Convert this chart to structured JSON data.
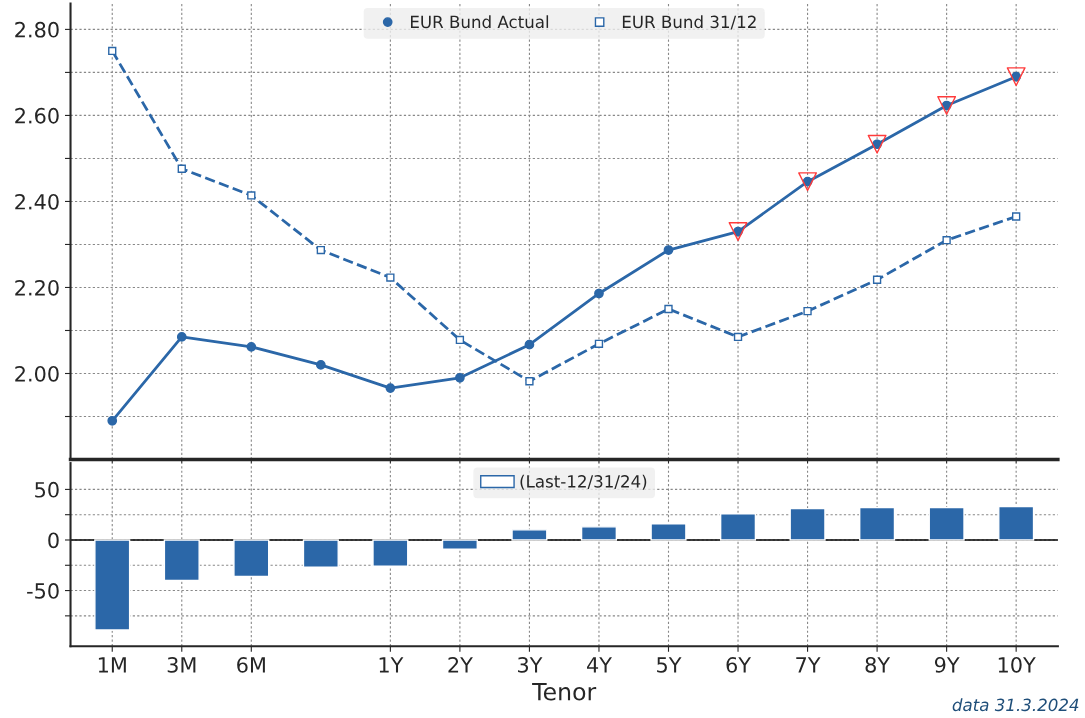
{
  "chart_data": [
    {
      "type": "line",
      "categories": [
        null,
        null,
        null,
        null,
        null,
        null,
        null,
        null,
        null,
        null,
        null,
        null,
        null,
        null
      ],
      "ylim": [
        1.8,
        2.86
      ],
      "yticks": [
        {
          "value": 1.9,
          "label": null
        },
        {
          "value": 2.0,
          "label": "2.00"
        },
        {
          "value": 2.1,
          "label": null
        },
        {
          "value": 2.2,
          "label": "2.20"
        },
        {
          "value": 2.3,
          "label": null
        },
        {
          "value": 2.4,
          "label": "2.40"
        },
        {
          "value": 2.5,
          "label": null
        },
        {
          "value": 2.6,
          "label": "2.60"
        },
        {
          "value": 2.7,
          "label": null
        },
        {
          "value": 2.8,
          "label": "2.80"
        }
      ],
      "series": [
        {
          "name": "EUR Bund Actual",
          "color": "#2b67a8",
          "marker": "circle",
          "line_style": "solid",
          "values": [
            1.89,
            2.085,
            2.062,
            2.02,
            1.966,
            1.99,
            2.067,
            2.186,
            2.287,
            2.33,
            2.446,
            2.533,
            2.623,
            2.69
          ]
        },
        {
          "name": "EUR Bund 31/12",
          "color": "#2b67a8",
          "marker": "square",
          "line_style": "dashed",
          "values": [
            2.75,
            2.476,
            2.414,
            2.287,
            2.223,
            2.078,
            1.982,
            2.069,
            2.15,
            2.085,
            2.145,
            2.218,
            2.31,
            2.365
          ]
        },
        {
          "type": "scatter",
          "color": "#ff3b3b",
          "marker": "triangle",
          "values": [
            null,
            null,
            null,
            null,
            null,
            null,
            null,
            null,
            null,
            2.33,
            2.446,
            2.533,
            2.623,
            2.69
          ]
        }
      ],
      "grid": true,
      "legend": "top",
      "tick_labels": "y"
    },
    {
      "type": "bar",
      "categories": [
        "1M",
        "3M",
        "6M",
        null,
        "1Y",
        "2Y",
        "3Y",
        "4Y",
        "5Y",
        "6Y",
        "7Y",
        "8Y",
        "9Y",
        "10Y"
      ],
      "ylim": [
        -105,
        76
      ],
      "yticks": [
        {
          "value": -75,
          "label": null
        },
        -50,
        {
          "value": -25,
          "label": null
        },
        0,
        {
          "value": 25,
          "label": null
        },
        50
      ],
      "series": [
        {
          "name": "(Last-12/31/24)",
          "color": "#2b67a8",
          "values": [
            -89,
            -40,
            -36,
            -27,
            -26,
            -9,
            10,
            13,
            16,
            26,
            31,
            32,
            32,
            33
          ]
        }
      ],
      "xlabel": "Tenor",
      "grid": true,
      "legend": "top",
      "annotations": [
        "data 31.3.2024"
      ]
    }
  ]
}
